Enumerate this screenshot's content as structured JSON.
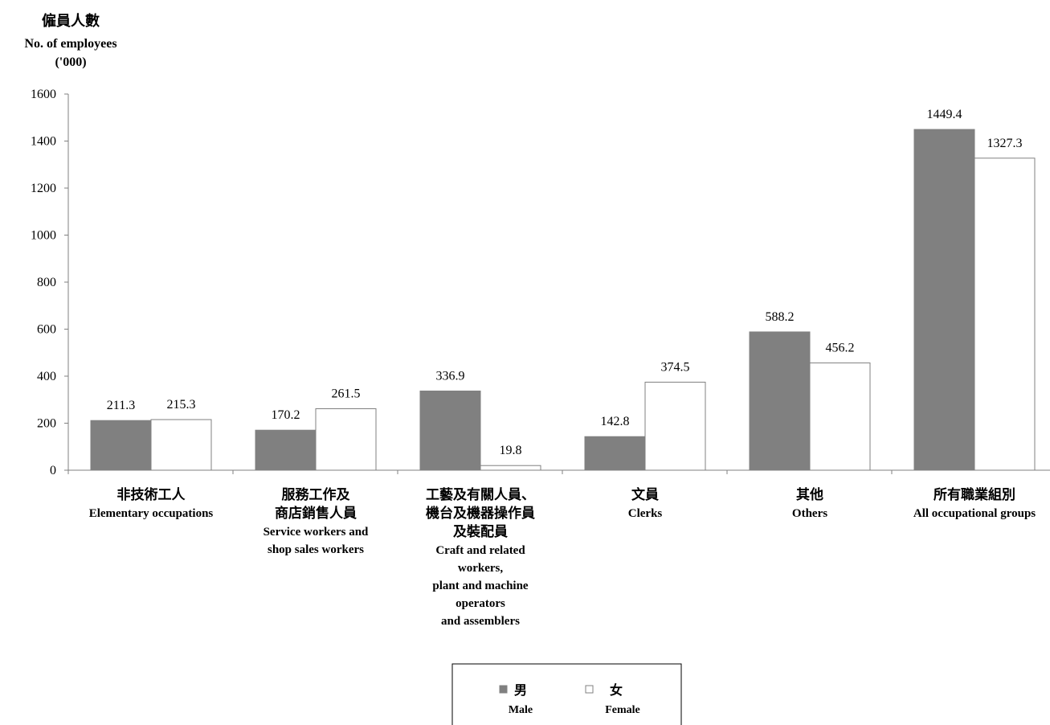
{
  "chart_data": {
    "type": "bar",
    "ylabel_zh": "僱員人數",
    "ylabel_en": "No. of employees",
    "ylabel_unit": "('000)",
    "ylim": [
      0,
      1600
    ],
    "yticks": [
      "0",
      "200",
      "400",
      "600",
      "800",
      "1000",
      "1200",
      "1400",
      "1600"
    ],
    "categories": [
      {
        "zh": [
          "非技術工人"
        ],
        "en": [
          "Elementary occupations"
        ]
      },
      {
        "zh": [
          "服務工作及",
          "商店銷售人員"
        ],
        "en": [
          "Service workers and",
          "shop sales workers"
        ]
      },
      {
        "zh": [
          "工藝及有關人員、",
          "機台及機器操作員",
          "及裝配員"
        ],
        "en": [
          "Craft and related",
          "workers,",
          "plant and machine",
          "operators",
          "and assemblers"
        ]
      },
      {
        "zh": [
          "文員"
        ],
        "en": [
          "Clerks"
        ]
      },
      {
        "zh": [
          "其他"
        ],
        "en": [
          "Others"
        ]
      },
      {
        "zh": [
          "所有職業組別"
        ],
        "en": [
          "All occupational groups"
        ]
      }
    ],
    "series": [
      {
        "name_zh": "男",
        "name_en": "Male",
        "color": "#808080",
        "values": [
          211.3,
          170.2,
          336.9,
          142.8,
          588.2,
          1449.4
        ],
        "labels": [
          "211.3",
          "170.2",
          "336.9",
          "142.8",
          "588.2",
          "1449.4"
        ]
      },
      {
        "name_zh": "女",
        "name_en": "Female",
        "color": "#ffffff",
        "values": [
          215.3,
          261.5,
          19.8,
          374.5,
          456.2,
          1327.3
        ],
        "labels": [
          "215.3",
          "261.5",
          "19.8",
          "374.5",
          "456.2",
          "1327.3"
        ]
      }
    ],
    "legend_placement": "bottom-center",
    "grid": false
  }
}
